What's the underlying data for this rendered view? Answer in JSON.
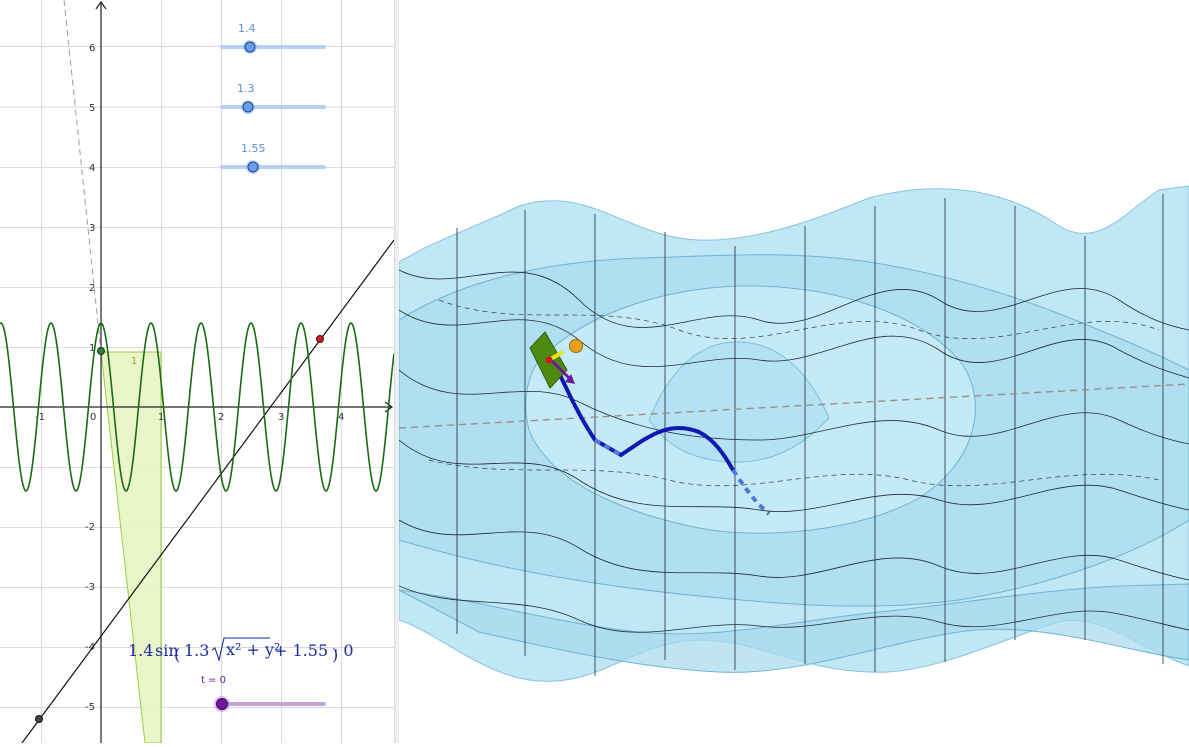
{
  "view2d": {
    "x_ticks": [
      "-1",
      "0",
      "1",
      "2",
      "3",
      "4"
    ],
    "y_ticks": [
      "6",
      "5",
      "4",
      "3",
      "2",
      "1",
      "-2",
      "-3",
      "-4",
      "-5"
    ],
    "region_label": "1",
    "formula": {
      "amp": "1.4",
      "fn": "sin",
      "k": "1.3",
      "radicand": "x² + y²",
      "rest": "+ 1.55 · 0"
    }
  },
  "sliders": [
    {
      "value": "1.4",
      "value_fraction": 0.28,
      "color": "#6b9ee8"
    },
    {
      "value": "1.3",
      "value_fraction": 0.26,
      "color": "#6b9ee8"
    },
    {
      "value": "1.55",
      "value_fraction": 0.31,
      "color": "#6b9ee8"
    }
  ],
  "time_slider": {
    "label": "t = 0",
    "value_fraction": 0.0,
    "color": "#7b1fa2"
  },
  "colors": {
    "curve": "#1b6b12",
    "area_fill": "#e6f4bf",
    "area_stroke": "#9ccc3c",
    "surface": "#b4e2f4",
    "path": "#1018b4",
    "path_dashed": "#4c78d8",
    "point_red": "#c81e1e",
    "point_green": "#2e7d32"
  }
}
